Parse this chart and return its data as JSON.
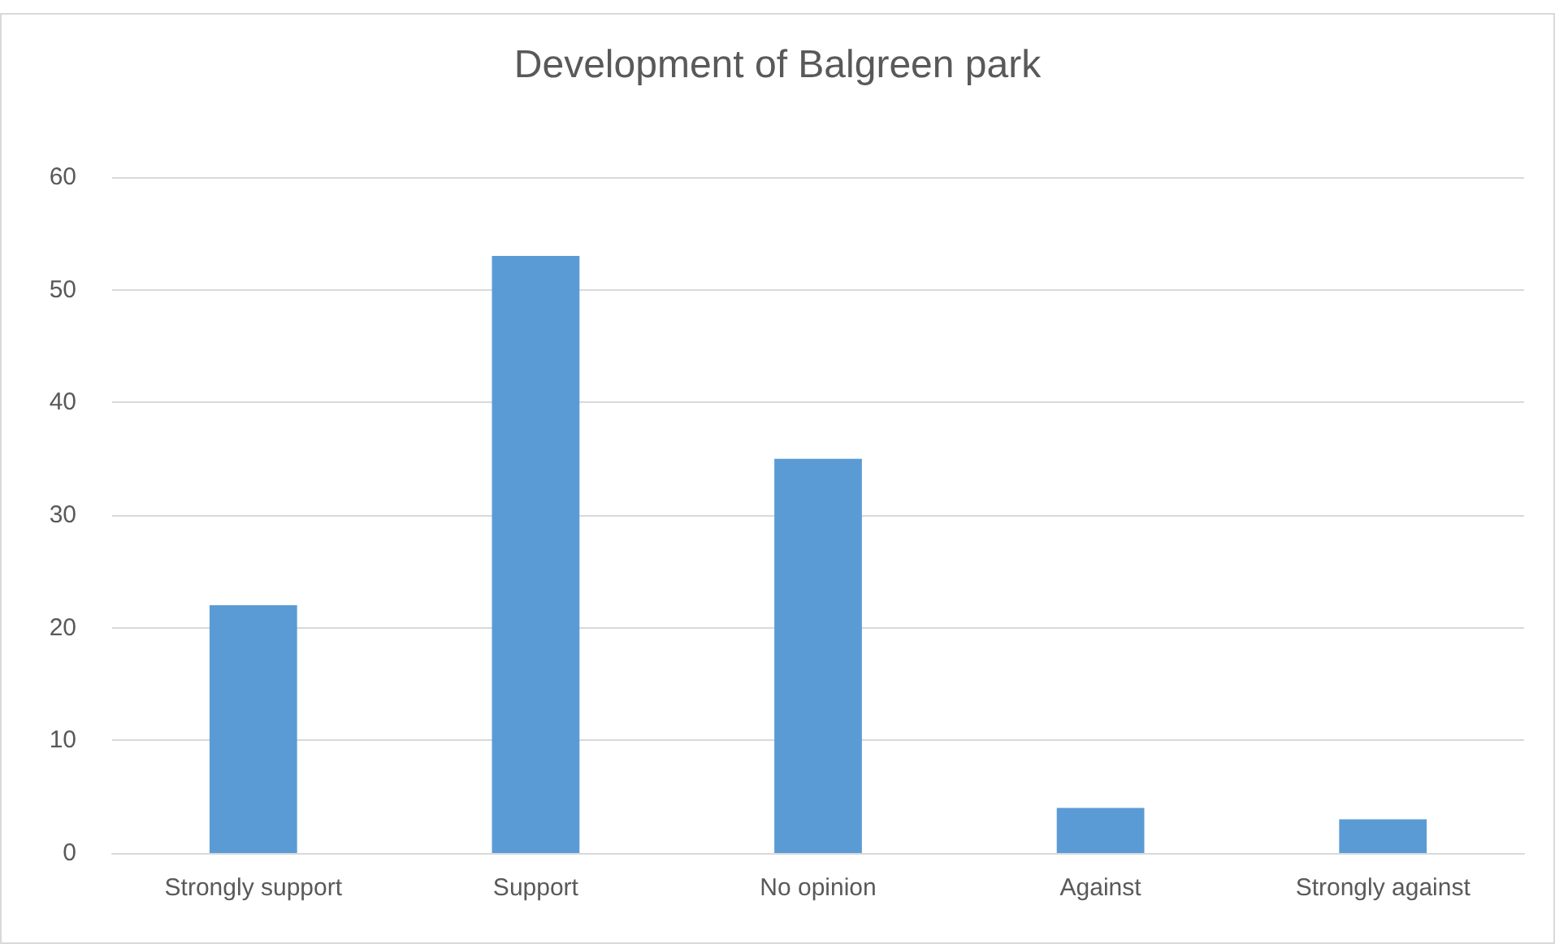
{
  "chart_data": {
    "type": "bar",
    "title": "Development of Balgreen park",
    "categories": [
      "Strongly support",
      "Support",
      "No opinion",
      "Against",
      "Strongly against"
    ],
    "values": [
      22,
      53,
      35,
      4,
      3
    ],
    "color": "#5b9bd5",
    "ylim": [
      0,
      60
    ],
    "yticks": [
      0,
      10,
      20,
      30,
      40,
      50,
      60
    ],
    "grid": "y"
  }
}
